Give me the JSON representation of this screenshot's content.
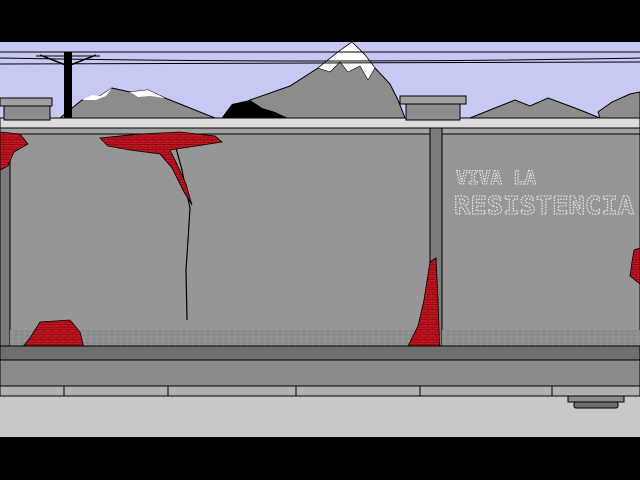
{
  "scene": {
    "graffiti_line1": "VIVA LA",
    "graffiti_line2": "RESISTENCIA"
  },
  "colors": {
    "sky": "#c8c8f4",
    "mountain": "#8c8c8c",
    "snow": "#ffffff",
    "wall": "#969696",
    "wall_dark": "#6e6e6e",
    "brick": "#c81420",
    "sidewalk": "#c8c8c8",
    "letterbox": "#000000"
  }
}
